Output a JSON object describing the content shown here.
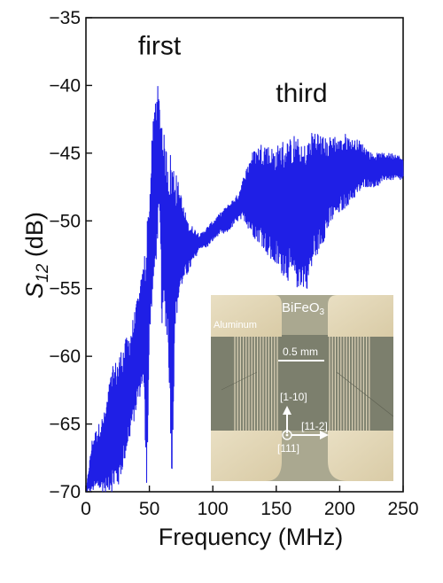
{
  "chart_data": {
    "type": "line",
    "xlabel": "Frequency  (MHz)",
    "ylabel_main": "S",
    "ylabel_sub": "12",
    "ylabel_unit": " (dB)",
    "xlim": [
      0,
      250
    ],
    "ylim": [
      -70,
      -35
    ],
    "xticks": [
      0,
      50,
      100,
      150,
      200,
      250
    ],
    "yticks": [
      -70,
      -65,
      -60,
      -55,
      -50,
      -45,
      -40,
      -35
    ],
    "grid": false,
    "line_color": "#1f1fe6",
    "annotations": [
      {
        "text": "first",
        "x": 58,
        "y": -37.7
      },
      {
        "text": "third",
        "x": 170,
        "y": -41.2
      }
    ],
    "series": [
      {
        "envelope_upper": [
          [
            0,
            -70
          ],
          [
            5,
            -66
          ],
          [
            10,
            -65
          ],
          [
            15,
            -64
          ],
          [
            20,
            -61
          ],
          [
            25,
            -60
          ],
          [
            30,
            -59
          ],
          [
            35,
            -58
          ],
          [
            40,
            -56
          ],
          [
            45,
            -53.5
          ],
          [
            48,
            -50
          ],
          [
            50,
            -48
          ],
          [
            52,
            -44
          ],
          [
            54,
            -41
          ],
          [
            56,
            -39.6
          ],
          [
            58,
            -41
          ],
          [
            60,
            -42
          ],
          [
            62,
            -44
          ],
          [
            65,
            -45
          ],
          [
            68,
            -44.5
          ],
          [
            70,
            -46
          ],
          [
            75,
            -48
          ],
          [
            80,
            -50
          ],
          [
            85,
            -50.5
          ],
          [
            90,
            -51
          ],
          [
            95,
            -50.5
          ],
          [
            100,
            -50
          ],
          [
            105,
            -49.5
          ],
          [
            110,
            -49
          ],
          [
            115,
            -48.5
          ],
          [
            120,
            -48
          ],
          [
            125,
            -46.5
          ],
          [
            130,
            -45
          ],
          [
            135,
            -44.5
          ],
          [
            140,
            -44
          ],
          [
            145,
            -44.5
          ],
          [
            150,
            -44.5
          ],
          [
            155,
            -44
          ],
          [
            160,
            -44
          ],
          [
            165,
            -43.5
          ],
          [
            170,
            -44.5
          ],
          [
            175,
            -44
          ],
          [
            180,
            -43
          ],
          [
            185,
            -43.5
          ],
          [
            190,
            -44
          ],
          [
            195,
            -43.5
          ],
          [
            200,
            -44
          ],
          [
            205,
            -43.5
          ],
          [
            210,
            -44
          ],
          [
            215,
            -44
          ],
          [
            220,
            -44.5
          ],
          [
            225,
            -45
          ],
          [
            230,
            -45
          ],
          [
            235,
            -45
          ],
          [
            240,
            -45
          ],
          [
            245,
            -45
          ],
          [
            250,
            -45.5
          ]
        ],
        "envelope_lower": [
          [
            0,
            -70
          ],
          [
            5,
            -70
          ],
          [
            10,
            -70
          ],
          [
            15,
            -70
          ],
          [
            20,
            -70
          ],
          [
            25,
            -70
          ],
          [
            30,
            -68
          ],
          [
            35,
            -66
          ],
          [
            40,
            -64
          ],
          [
            45,
            -62
          ],
          [
            48,
            -70
          ],
          [
            50,
            -60
          ],
          [
            52,
            -56
          ],
          [
            54,
            -55
          ],
          [
            56,
            -52
          ],
          [
            58,
            -50
          ],
          [
            60,
            -58
          ],
          [
            62,
            -57
          ],
          [
            65,
            -60
          ],
          [
            68,
            -70
          ],
          [
            70,
            -58
          ],
          [
            75,
            -55
          ],
          [
            80,
            -54
          ],
          [
            85,
            -53
          ],
          [
            90,
            -52
          ],
          [
            95,
            -52
          ],
          [
            100,
            -51.5
          ],
          [
            105,
            -51
          ],
          [
            110,
            -51
          ],
          [
            115,
            -50.5
          ],
          [
            120,
            -50
          ],
          [
            125,
            -50
          ],
          [
            130,
            -51
          ],
          [
            135,
            -51.5
          ],
          [
            140,
            -52
          ],
          [
            145,
            -53
          ],
          [
            150,
            -53.5
          ],
          [
            155,
            -54
          ],
          [
            160,
            -54.5
          ],
          [
            165,
            -55
          ],
          [
            170,
            -55
          ],
          [
            175,
            -55
          ],
          [
            180,
            -53
          ],
          [
            185,
            -52
          ],
          [
            190,
            -51
          ],
          [
            195,
            -50
          ],
          [
            200,
            -49.5
          ],
          [
            205,
            -49
          ],
          [
            210,
            -48.5
          ],
          [
            215,
            -48
          ],
          [
            220,
            -47.5
          ],
          [
            225,
            -47.5
          ],
          [
            230,
            -47.5
          ],
          [
            235,
            -47
          ],
          [
            240,
            -47
          ],
          [
            245,
            -47
          ],
          [
            250,
            -47
          ]
        ]
      }
    ]
  },
  "inset": {
    "material_label": "BiFeO",
    "material_sub": "3",
    "electrode_label": "Aluminum",
    "scale_label": "0.5 mm",
    "direction_up": "[1-10]",
    "direction_right": "[11-2]",
    "direction_normal": "[111]"
  }
}
